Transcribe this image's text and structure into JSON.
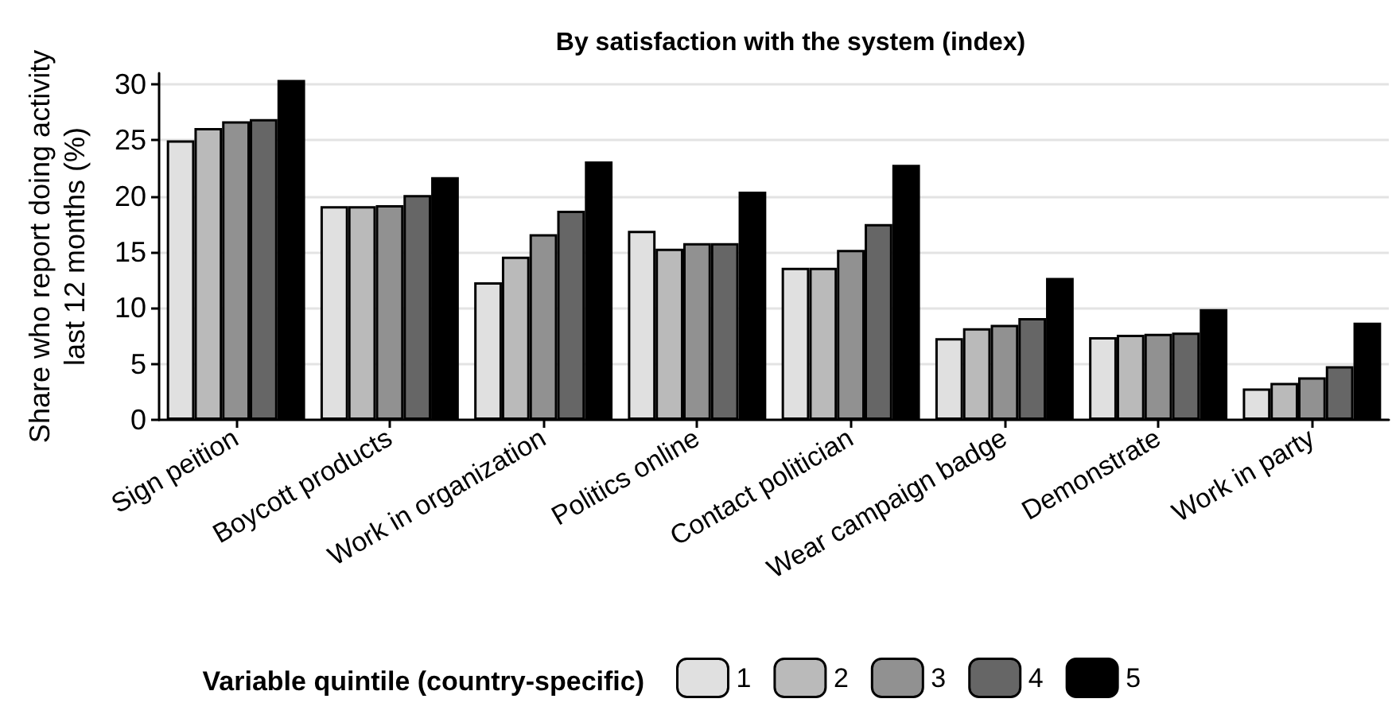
{
  "chart_data": {
    "type": "bar",
    "title": "By satisfaction with the system (index)",
    "ylabel": "Share who report doing activity\nlast 12 months (%)",
    "legend_title": "Variable quintile (country-specific)",
    "categories": [
      "Sign peition",
      "Boycott products",
      "Work in organization",
      "Politics online",
      "Contact politician",
      "Wear campaign badge",
      "Demonstrate",
      "Work in party"
    ],
    "series": [
      {
        "name": "1",
        "color": "#e0e0e0",
        "values": [
          25.0,
          19.1,
          12.3,
          16.9,
          13.6,
          7.3,
          7.4,
          2.8
        ]
      },
      {
        "name": "2",
        "color": "#bababa",
        "values": [
          26.1,
          19.1,
          14.6,
          15.3,
          13.6,
          8.2,
          7.6,
          3.3
        ]
      },
      {
        "name": "3",
        "color": "#919191",
        "values": [
          26.7,
          19.2,
          16.6,
          15.8,
          15.2,
          8.5,
          7.7,
          3.8
        ]
      },
      {
        "name": "4",
        "color": "#666666",
        "values": [
          26.9,
          20.1,
          18.7,
          15.8,
          17.5,
          9.1,
          7.8,
          4.8
        ]
      },
      {
        "name": "5",
        "color": "#000000",
        "values": [
          30.4,
          21.7,
          23.1,
          20.4,
          22.8,
          12.7,
          9.9,
          8.7
        ]
      }
    ],
    "ylim": [
      0,
      31
    ],
    "yticks": [
      0,
      5,
      10,
      15,
      20,
      25,
      30
    ],
    "grid": "y",
    "legend": "bottom"
  }
}
